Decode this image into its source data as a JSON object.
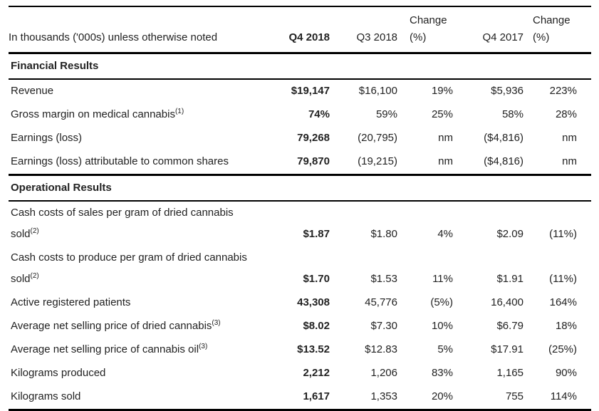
{
  "table": {
    "note": "In thousands ('000s) unless otherwise noted",
    "columns": [
      {
        "top": "",
        "bottom": "Q4 2018",
        "bold": true
      },
      {
        "top": "",
        "bottom": "Q3 2018",
        "bold": false
      },
      {
        "top": "Change",
        "bottom": "(%)",
        "bold": false
      },
      {
        "top": "",
        "bottom": "Q4 2017",
        "bold": false
      },
      {
        "top": "Change",
        "bottom": "(%)",
        "bold": false
      }
    ],
    "sections": [
      {
        "title": "Financial Results",
        "rows": [
          {
            "label": "Revenue",
            "values": [
              "$19,147",
              "$16,100",
              "19%",
              "$5,936",
              "223%"
            ]
          },
          {
            "label": "Gross margin on medical cannabis",
            "sup": "(1)",
            "values": [
              "74%",
              "59%",
              "25%",
              "58%",
              "28%"
            ]
          },
          {
            "label": "Earnings (loss)",
            "values": [
              "79,268",
              "(20,795)",
              "nm",
              "($4,816)",
              "nm"
            ]
          },
          {
            "label": "Earnings (loss) attributable to common shares",
            "values": [
              "79,870",
              "(19,215)",
              "nm",
              "($4,816)",
              "nm"
            ]
          }
        ]
      },
      {
        "title": "Operational Results",
        "rows": [
          {
            "label": "Cash costs of sales per gram of dried cannabis",
            "label2": "sold",
            "sup": "(2)",
            "values": [
              "$1.87",
              "$1.80",
              "4%",
              "$2.09",
              "(11%)"
            ]
          },
          {
            "label": "Cash costs to produce per gram of dried cannabis",
            "label2": "sold",
            "sup": "(2)",
            "values": [
              "$1.70",
              "$1.53",
              "11%",
              "$1.91",
              "(11%)"
            ]
          },
          {
            "label": "Active registered patients",
            "values": [
              "43,308",
              "45,776",
              "(5%)",
              "16,400",
              "164%"
            ]
          },
          {
            "label": "Average net selling price of dried cannabis",
            "sup": "(3)",
            "values": [
              "$8.02",
              "$7.30",
              "10%",
              "$6.79",
              "18%"
            ]
          },
          {
            "label": "Average net selling price of cannabis oil",
            "sup": "(3)",
            "values": [
              "$13.52",
              "$12.83",
              "5%",
              "$17.91",
              "(25%)"
            ]
          },
          {
            "label": "Kilograms produced",
            "values": [
              "2,212",
              "1,206",
              "83%",
              "1,165",
              "90%"
            ]
          },
          {
            "label": "Kilograms sold",
            "values": [
              "1,617",
              "1,353",
              "20%",
              "755",
              "114%"
            ]
          }
        ]
      }
    ]
  }
}
